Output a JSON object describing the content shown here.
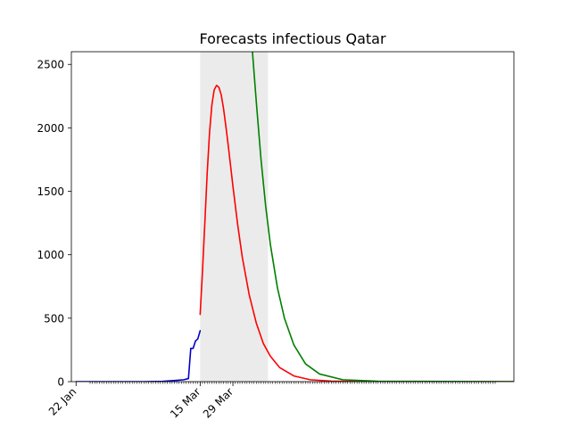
{
  "chart_data": {
    "type": "line",
    "title": "Forecasts infectious Qatar",
    "xlabel": "",
    "ylabel": "",
    "x_axis": {
      "type": "date",
      "start": "2020-01-20",
      "end": "2020-07-27",
      "tick_labels": [
        {
          "date": "2020-01-22",
          "label": "22 Jan"
        },
        {
          "date": "2020-03-15",
          "label": "15 Mar"
        },
        {
          "date": "2020-03-29",
          "label": "29 Mar"
        }
      ],
      "minor_ticks": "daily"
    },
    "y_axis": {
      "ylim": [
        0,
        2600
      ],
      "ticks": [
        0,
        500,
        1000,
        1500,
        2000,
        2500
      ]
    },
    "grid": false,
    "shaded_region": {
      "x_start": "2020-03-15",
      "x_end": "2020-04-13",
      "color": "#ebebeb"
    },
    "series": [
      {
        "color": "#0000cc",
        "points": [
          [
            "2020-01-22",
            0
          ],
          [
            "2020-02-20",
            0
          ],
          [
            "2020-02-28",
            2
          ],
          [
            "2020-03-05",
            10
          ],
          [
            "2020-03-08",
            15
          ],
          [
            "2020-03-10",
            24
          ],
          [
            "2020-03-11",
            262
          ],
          [
            "2020-03-12",
            262
          ],
          [
            "2020-03-13",
            320
          ],
          [
            "2020-03-14",
            337
          ],
          [
            "2020-03-15",
            401
          ]
        ]
      },
      {
        "color": "#ff0000",
        "points": [
          [
            "2020-03-15",
            530
          ],
          [
            "2020-03-16",
            870
          ],
          [
            "2020-03-17",
            1250
          ],
          [
            "2020-03-18",
            1640
          ],
          [
            "2020-03-19",
            1960
          ],
          [
            "2020-03-20",
            2180
          ],
          [
            "2020-03-21",
            2300
          ],
          [
            "2020-03-22",
            2335
          ],
          [
            "2020-03-23",
            2320
          ],
          [
            "2020-03-24",
            2260
          ],
          [
            "2020-03-25",
            2150
          ],
          [
            "2020-03-26",
            2010
          ],
          [
            "2020-03-27",
            1860
          ],
          [
            "2020-03-28",
            1700
          ],
          [
            "2020-03-29",
            1540
          ],
          [
            "2020-03-31",
            1240
          ],
          [
            "2020-04-02",
            980
          ],
          [
            "2020-04-05",
            680
          ],
          [
            "2020-04-08",
            460
          ],
          [
            "2020-04-11",
            300
          ],
          [
            "2020-04-14",
            200
          ],
          [
            "2020-04-18",
            110
          ],
          [
            "2020-04-24",
            45
          ],
          [
            "2020-05-01",
            15
          ],
          [
            "2020-05-10",
            4
          ],
          [
            "2020-05-25",
            0
          ],
          [
            "2020-07-27",
            0
          ]
        ]
      },
      {
        "color": "#008000",
        "points": [
          [
            "2020-04-06",
            2680
          ],
          [
            "2020-04-08",
            2200
          ],
          [
            "2020-04-10",
            1750
          ],
          [
            "2020-04-12",
            1380
          ],
          [
            "2020-04-14",
            1080
          ],
          [
            "2020-04-17",
            740
          ],
          [
            "2020-04-20",
            500
          ],
          [
            "2020-04-24",
            290
          ],
          [
            "2020-04-29",
            140
          ],
          [
            "2020-05-05",
            60
          ],
          [
            "2020-05-15",
            15
          ],
          [
            "2020-05-30",
            3
          ],
          [
            "2020-07-27",
            0
          ]
        ]
      }
    ]
  }
}
